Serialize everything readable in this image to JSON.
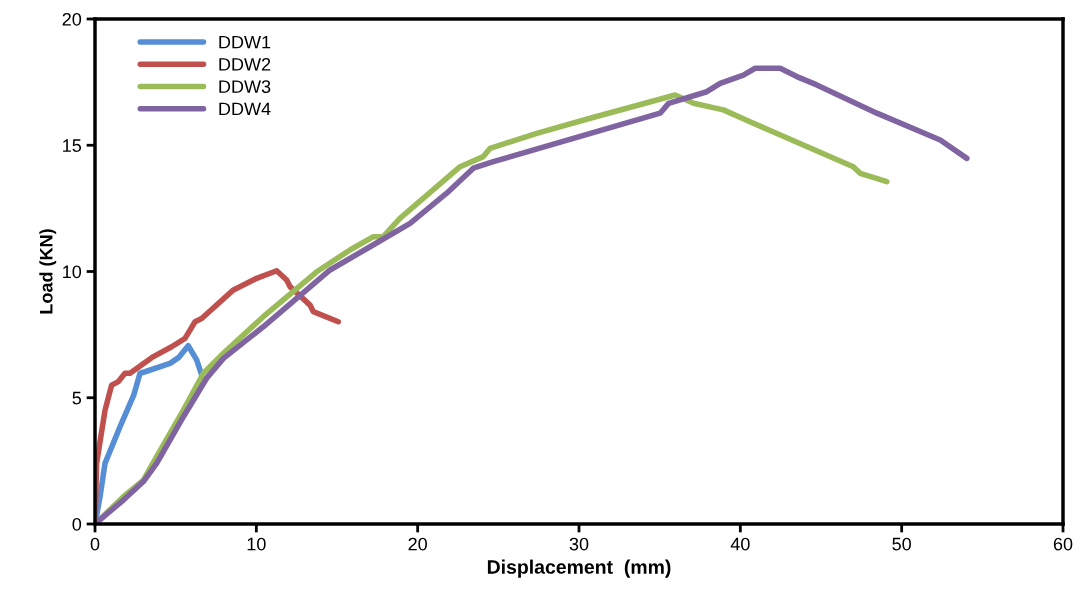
{
  "chart_data": {
    "type": "line",
    "xlabel": "Displacement  (mm)",
    "ylabel": "Load (KN)",
    "xlim": [
      0,
      60
    ],
    "xticks": [
      0,
      10,
      20,
      30,
      40,
      50,
      60
    ],
    "ylim": [
      0,
      20
    ],
    "yticks": [
      0,
      5,
      10,
      15,
      20
    ],
    "grid": false,
    "legend": "top left",
    "marker": "none",
    "line_style": "solid",
    "series": [
      {
        "name": "DDW1",
        "color": "#558ed5",
        "x": [
          0,
          0.31,
          0.62,
          1.55,
          2.4,
          2.79,
          3.1,
          4.65,
          5.2,
          5.78,
          6.3,
          6.72
        ],
        "values": [
          0,
          1.08,
          2.4,
          3.85,
          5.1,
          5.97,
          6.03,
          6.36,
          6.6,
          7.06,
          6.5,
          5.7
        ]
      },
      {
        "name": "DDW2",
        "color": "#c0504d",
        "x": [
          0,
          0.1,
          0.62,
          1.03,
          1.45,
          1.86,
          2.17,
          3.62,
          4.75,
          5.58,
          6.2,
          6.61,
          8.58,
          10.02,
          11.26,
          11.88,
          12.09,
          13.33,
          13.53,
          15.08
        ],
        "values": [
          0,
          2.4,
          4.5,
          5.5,
          5.64,
          5.97,
          5.97,
          6.63,
          7.02,
          7.35,
          8.01,
          8.14,
          9.27,
          9.73,
          10.03,
          9.66,
          9.4,
          8.67,
          8.41,
          8.01
        ]
      },
      {
        "name": "DDW3",
        "color": "#9bbb59",
        "x": [
          0,
          1.76,
          3.0,
          3.82,
          5.48,
          6.72,
          7.96,
          10.43,
          13.74,
          15.8,
          17.26,
          17.87,
          18.9,
          22.63,
          24.07,
          24.49,
          27.38,
          30.69,
          35.23,
          35.96,
          37.1,
          38.95,
          40.6,
          47.0,
          47.43,
          49.08
        ],
        "values": [
          0,
          1.08,
          1.74,
          2.67,
          4.51,
          5.97,
          6.76,
          8.21,
          9.99,
          10.85,
          11.38,
          11.38,
          12.1,
          14.15,
          14.55,
          14.88,
          15.47,
          16.07,
          16.86,
          16.99,
          16.66,
          16.4,
          15.93,
          14.15,
          13.89,
          13.56
        ]
      },
      {
        "name": "DDW4",
        "color": "#8064a2",
        "x": [
          0,
          1.76,
          3.0,
          3.82,
          5.48,
          6.92,
          7.96,
          10.43,
          14.57,
          17.05,
          19.53,
          21.8,
          23.45,
          24.69,
          35.03,
          35.55,
          37.92,
          38.75,
          40.19,
          40.92,
          42.47,
          43.5,
          44.74,
          48.46,
          52.39,
          54.04
        ],
        "values": [
          0,
          0.95,
          1.68,
          2.4,
          4.25,
          5.77,
          6.56,
          7.81,
          10.06,
          10.98,
          11.91,
          13.1,
          14.09,
          14.35,
          16.27,
          16.66,
          17.12,
          17.45,
          17.78,
          18.05,
          18.05,
          17.72,
          17.39,
          16.27,
          15.21,
          14.48
        ]
      }
    ]
  }
}
